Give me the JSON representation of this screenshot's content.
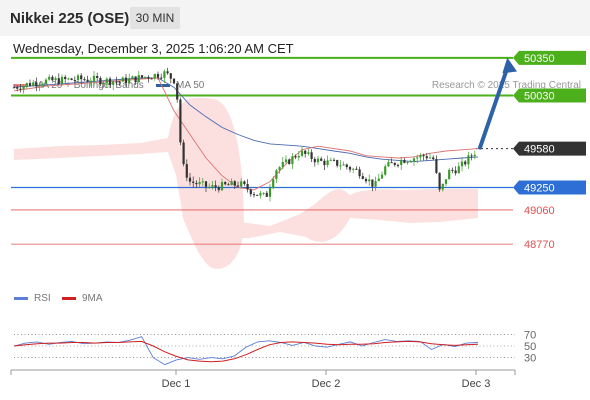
{
  "header": {
    "title": "Nikkei 225 (OSE)",
    "timeframe": "30 MIN",
    "datetime": "Wednesday, December 3, 2025 1:06:20 AM CET"
  },
  "legend": {
    "items": [
      {
        "label": "MA 20 + Bollinger Bands",
        "color": "#f08080"
      },
      {
        "label": "MA 50",
        "color": "#2f5f9e"
      }
    ],
    "copyright": "Research © 2025 Trading Central"
  },
  "colors": {
    "resistance": "#4caf1c",
    "support": "#2e6fd6",
    "minor_support": "#e05050",
    "up_candle": "#3a9a2a",
    "down_candle": "#333333",
    "ma20": "#e07070",
    "ma50": "#4a6ab0",
    "bollinger_fill": "#fbd8d8",
    "arrow": "#2e62a8",
    "rsi": "#5b7fd6",
    "rsi_ma": "#d02020"
  },
  "chart_data": [
    {
      "type": "candlestick",
      "title": "",
      "x_ticks": [
        "Dec 1",
        "Dec 2",
        "Dec 3"
      ],
      "ylim": [
        48600,
        50700
      ],
      "levels": [
        {
          "value": 50350,
          "label": "50350",
          "kind": "resistance"
        },
        {
          "value": 50030,
          "label": "50030",
          "kind": "resistance"
        },
        {
          "value": 49580,
          "label": "49580",
          "kind": "current"
        },
        {
          "value": 49250,
          "label": "49250",
          "kind": "support"
        },
        {
          "value": 49060,
          "label": "49060",
          "kind": "minor_support"
        },
        {
          "value": 48770,
          "label": "48770",
          "kind": "minor_support"
        }
      ],
      "series": [
        {
          "name": "MA 20",
          "values": [
            50070,
            50090,
            50110,
            50120,
            50130,
            50140,
            50150,
            50160,
            50170,
            50180,
            49900,
            49700,
            49500,
            49350,
            49250,
            49230,
            49300,
            49450,
            49570,
            49600,
            49580,
            49560,
            49520,
            49510,
            49500,
            49510,
            49540,
            49560,
            49570,
            49580
          ]
        },
        {
          "name": "MA 50",
          "values": [
            50100,
            50110,
            50120,
            50130,
            50140,
            50150,
            50160,
            50170,
            50180,
            50180,
            50100,
            49950,
            49850,
            49760,
            49700,
            49650,
            49620,
            49610,
            49600,
            49580,
            49560,
            49540,
            49510,
            49490,
            49480,
            49470,
            49480,
            49490,
            49500,
            49510
          ]
        }
      ],
      "annotation": "up arrow from current price toward 50350"
    },
    {
      "type": "line",
      "title": "",
      "ylim": [
        10,
        90
      ],
      "y_ticks": [
        70,
        50,
        30
      ],
      "series": [
        {
          "name": "RSI",
          "values": [
            50,
            55,
            57,
            53,
            56,
            58,
            54,
            55,
            57,
            56,
            60,
            66,
            30,
            18,
            26,
            30,
            27,
            30,
            28,
            33,
            48,
            57,
            59,
            56,
            51,
            56,
            50,
            48,
            53,
            57,
            50,
            56,
            61,
            58,
            59,
            58,
            44,
            53,
            49,
            55,
            56
          ]
        },
        {
          "name": "9MA",
          "values": [
            50,
            52,
            54,
            55,
            55,
            56,
            56,
            55,
            56,
            56,
            57,
            58,
            50,
            40,
            32,
            26,
            24,
            23,
            24,
            28,
            35,
            44,
            52,
            56,
            57,
            56,
            55,
            53,
            52,
            53,
            53,
            54,
            56,
            57,
            58,
            57,
            54,
            52,
            51,
            52,
            53
          ]
        }
      ]
    }
  ]
}
